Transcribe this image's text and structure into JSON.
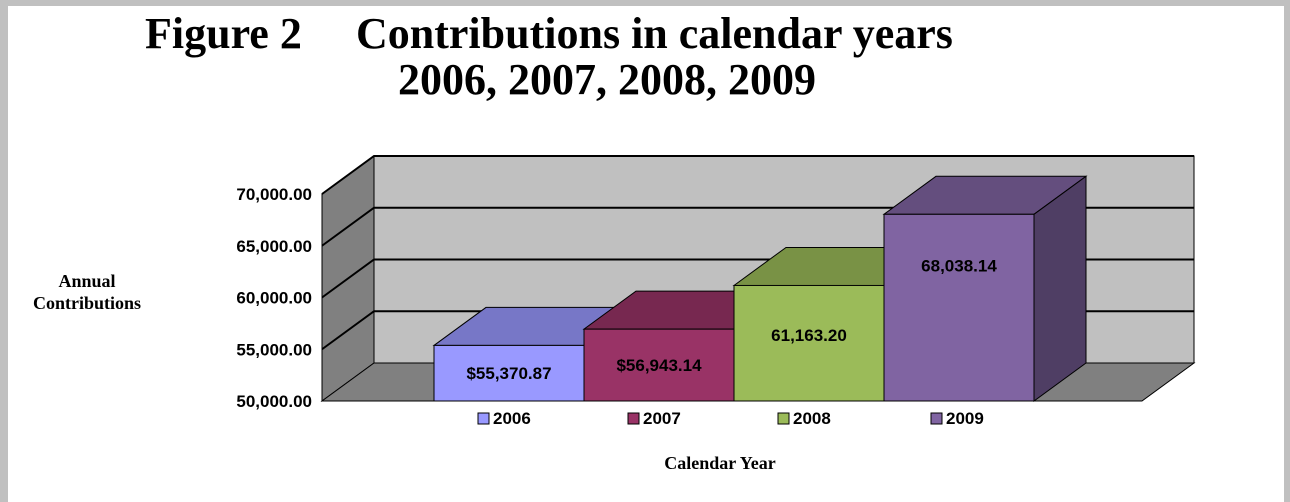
{
  "figure": {
    "label": "Figure 2",
    "title_line1": "Contributions in calendar years",
    "title_line2": "2006, 2007, 2008, 2009"
  },
  "chart_data": {
    "type": "bar",
    "subtype": "3d-column",
    "categories": [
      "2006",
      "2007",
      "2008",
      "2009"
    ],
    "values": [
      55370.87,
      56943.14,
      61163.2,
      68038.14
    ],
    "data_labels": [
      "$55,370.87",
      "$56,943.14",
      "61,163.20",
      "68,038.14"
    ],
    "colors": [
      "#9999ff",
      "#993366",
      "#9bbb59",
      "#8064a2"
    ],
    "ylabel": "Annual Contributions",
    "xlabel": "Calendar Year",
    "ylim": [
      50000,
      70000
    ],
    "yticks": [
      "50,000.00",
      "55,000.00",
      "60,000.00",
      "65,000.00",
      "70,000.00"
    ],
    "legend": {
      "position": "bottom",
      "entries": [
        "2006",
        "2007",
        "2008",
        "2009"
      ]
    },
    "grid": true
  }
}
